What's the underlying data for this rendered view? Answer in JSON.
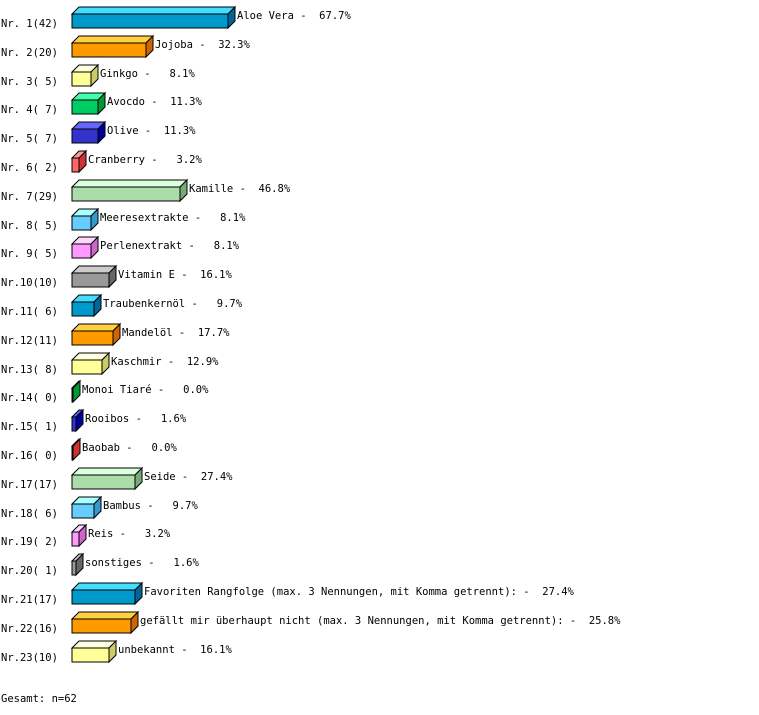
{
  "chart_data": {
    "type": "bar",
    "orientation": "horizontal",
    "style": "3d",
    "unit": "%",
    "rows": [
      {
        "rank": "Nr. 1",
        "count": "42",
        "name": "Aloe Vera",
        "pct": 67.7
      },
      {
        "rank": "Nr. 2",
        "count": "20",
        "name": "Jojoba",
        "pct": 32.3
      },
      {
        "rank": "Nr. 3",
        "count": " 5",
        "name": "Ginkgo",
        "pct": 8.1
      },
      {
        "rank": "Nr. 4",
        "count": " 7",
        "name": "Avocdo",
        "pct": 11.3
      },
      {
        "rank": "Nr. 5",
        "count": " 7",
        "name": "Olive",
        "pct": 11.3
      },
      {
        "rank": "Nr. 6",
        "count": " 2",
        "name": "Cranberry",
        "pct": 3.2
      },
      {
        "rank": "Nr. 7",
        "count": "29",
        "name": "Kamille",
        "pct": 46.8
      },
      {
        "rank": "Nr. 8",
        "count": " 5",
        "name": "Meeresextrakte",
        "pct": 8.1
      },
      {
        "rank": "Nr. 9",
        "count": " 5",
        "name": "Perlenextrakt",
        "pct": 8.1
      },
      {
        "rank": "Nr.10",
        "count": "10",
        "name": "Vitamin E",
        "pct": 16.1
      },
      {
        "rank": "Nr.11",
        "count": " 6",
        "name": "Traubenkernöl",
        "pct": 9.7
      },
      {
        "rank": "Nr.12",
        "count": "11",
        "name": "Mandelöl",
        "pct": 17.7
      },
      {
        "rank": "Nr.13",
        "count": " 8",
        "name": "Kaschmir",
        "pct": 12.9
      },
      {
        "rank": "Nr.14",
        "count": " 0",
        "name": "Monoi Tiaré",
        "pct": 0.0
      },
      {
        "rank": "Nr.15",
        "count": " 1",
        "name": "Rooibos",
        "pct": 1.6
      },
      {
        "rank": "Nr.16",
        "count": " 0",
        "name": "Baobab",
        "pct": 0.0
      },
      {
        "rank": "Nr.17",
        "count": "17",
        "name": "Seide",
        "pct": 27.4
      },
      {
        "rank": "Nr.18",
        "count": " 6",
        "name": "Bambus",
        "pct": 9.7
      },
      {
        "rank": "Nr.19",
        "count": " 2",
        "name": "Reis",
        "pct": 3.2
      },
      {
        "rank": "Nr.20",
        "count": " 1",
        "name": "sonstiges",
        "pct": 1.6
      },
      {
        "rank": "Nr.21",
        "count": "17",
        "name": "Favoriten Rangfolge (max. 3 Nennungen, mit Komma getrennt):",
        "pct": 27.4
      },
      {
        "rank": "Nr.22",
        "count": "16",
        "name": "gefällt mir überhaupt nicht (max. 3 Nennungen, mit Komma getrennt):",
        "pct": 25.8
      },
      {
        "rank": "Nr.23",
        "count": "10",
        "name": "unbekannt",
        "pct": 16.1
      }
    ],
    "palette": [
      {
        "front": "#0099cc",
        "top": "#44ddff",
        "side": "#006699"
      },
      {
        "front": "#ff9900",
        "top": "#ffd040",
        "side": "#cc6600"
      },
      {
        "front": "#ffff99",
        "top": "#ffffdd",
        "side": "#cccc66"
      },
      {
        "front": "#00cc66",
        "top": "#44ffaa",
        "side": "#009933"
      },
      {
        "front": "#3333cc",
        "top": "#6666ff",
        "side": "#000099"
      },
      {
        "front": "#ff6666",
        "top": "#ff9999",
        "side": "#cc3333"
      },
      {
        "front": "#aaddaa",
        "top": "#ddffdd",
        "side": "#77aa77"
      },
      {
        "front": "#66ccff",
        "top": "#aaffff",
        "side": "#3399cc"
      },
      {
        "front": "#ff99ff",
        "top": "#ffd6ff",
        "side": "#cc66cc"
      },
      {
        "front": "#999999",
        "top": "#cccccc",
        "side": "#666666"
      }
    ]
  },
  "footer": "Gesamt: n=62"
}
